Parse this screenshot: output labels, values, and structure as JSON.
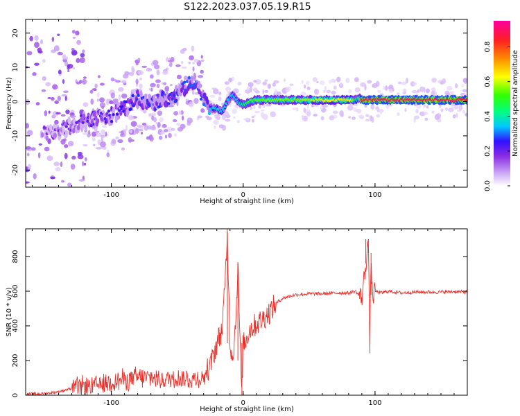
{
  "title": "S122.2023.037.05.19.R15",
  "colors": {
    "snr_line": "#e8302a",
    "colormap": [
      "#ffffff",
      "#c9a3f5",
      "#8a2be2",
      "#3010ff",
      "#00c8ff",
      "#00ff7f",
      "#33ff00",
      "#ffff00",
      "#ff8c00",
      "#ff2020",
      "#ff00a0"
    ]
  },
  "chart_data": [
    {
      "type": "heatmap",
      "name": "spectrogram",
      "xlabel": "Height of straight line (km)",
      "ylabel": "Frequency (Hz)",
      "xlim": [
        -165,
        170
      ],
      "ylim": [
        -25,
        24
      ],
      "xticks": [
        -100,
        0,
        100
      ],
      "xtick_labels": [
        "-100",
        "0",
        "100"
      ],
      "yticks": [
        -20,
        -10,
        0,
        10,
        20
      ],
      "ytick_labels": [
        "-20",
        "-10",
        "0",
        "10",
        "20"
      ],
      "colorbar": {
        "label": "Normalized spectral amplitude",
        "range": [
          0,
          0.95
        ],
        "ticks": [
          0.0,
          0.2,
          0.4,
          0.6,
          0.8
        ],
        "tick_labels": [
          "0.0",
          "0.2",
          "0.4",
          "0.6",
          "0.8"
        ]
      },
      "ridge": {
        "x": [
          -145,
          -130,
          -115,
          -100,
          -90,
          -80,
          -70,
          -60,
          -50,
          -42,
          -38,
          -33,
          -28,
          -24,
          -20,
          -16,
          -12,
          -8,
          -4,
          0,
          5,
          10,
          20,
          40,
          60,
          80,
          84,
          86,
          88,
          90,
          100,
          120,
          140,
          160,
          170
        ],
        "freq": [
          -9,
          -7,
          -5,
          -4,
          -2,
          1,
          -1,
          1,
          2,
          5,
          6,
          3,
          -1,
          -2,
          -2,
          -3,
          0,
          2,
          0,
          -1,
          0,
          0.5,
          0.5,
          0.5,
          0.5,
          0.5,
          0.5,
          0.5,
          1,
          0.5,
          0.5,
          0.5,
          0.5,
          0.5,
          0.5
        ],
        "amplitude": [
          0.2,
          0.22,
          0.25,
          0.27,
          0.28,
          0.3,
          0.3,
          0.3,
          0.3,
          0.32,
          0.33,
          0.3,
          0.35,
          0.4,
          0.42,
          0.4,
          0.4,
          0.38,
          0.4,
          0.5,
          0.55,
          0.58,
          0.6,
          0.6,
          0.65,
          0.7,
          0.6,
          0.45,
          0.5,
          0.9,
          0.9,
          0.9,
          0.9,
          0.9,
          0.85
        ]
      }
    },
    {
      "type": "line",
      "name": "snr",
      "xlabel": "Height of straight line (km)",
      "ylabel": "SNR (10 * v/v)",
      "xlim": [
        -165,
        170
      ],
      "ylim": [
        0,
        960
      ],
      "xticks": [
        -100,
        0,
        100
      ],
      "xtick_labels": [
        "-100",
        "0",
        "100"
      ],
      "yticks": [
        0,
        200,
        400,
        600,
        800
      ],
      "ytick_labels": [
        "0",
        "200",
        "400",
        "600",
        "800"
      ],
      "series": [
        {
          "name": "SNR",
          "x": [
            -165,
            -150,
            -140,
            -130,
            -120,
            -110,
            -100,
            -90,
            -80,
            -70,
            -60,
            -50,
            -40,
            -30,
            -24,
            -20,
            -16,
            -14,
            -12,
            -10,
            -8,
            -6,
            -4,
            -2,
            -1,
            0,
            1,
            2,
            5,
            10,
            15,
            20,
            25,
            30,
            40,
            50,
            60,
            70,
            80,
            85,
            90,
            93,
            95,
            96,
            97,
            98,
            100,
            105,
            110,
            120,
            130,
            140,
            150,
            160,
            170
          ],
          "y": [
            5,
            10,
            20,
            40,
            50,
            60,
            80,
            90,
            100,
            100,
            90,
            100,
            90,
            100,
            190,
            300,
            380,
            600,
            940,
            300,
            220,
            380,
            760,
            200,
            0,
            330,
            300,
            320,
            380,
            410,
            440,
            480,
            530,
            560,
            580,
            585,
            585,
            590,
            590,
            600,
            560,
            760,
            900,
            240,
            820,
            560,
            600,
            590,
            600,
            590,
            595,
            595,
            595,
            598,
            595
          ]
        }
      ]
    }
  ]
}
